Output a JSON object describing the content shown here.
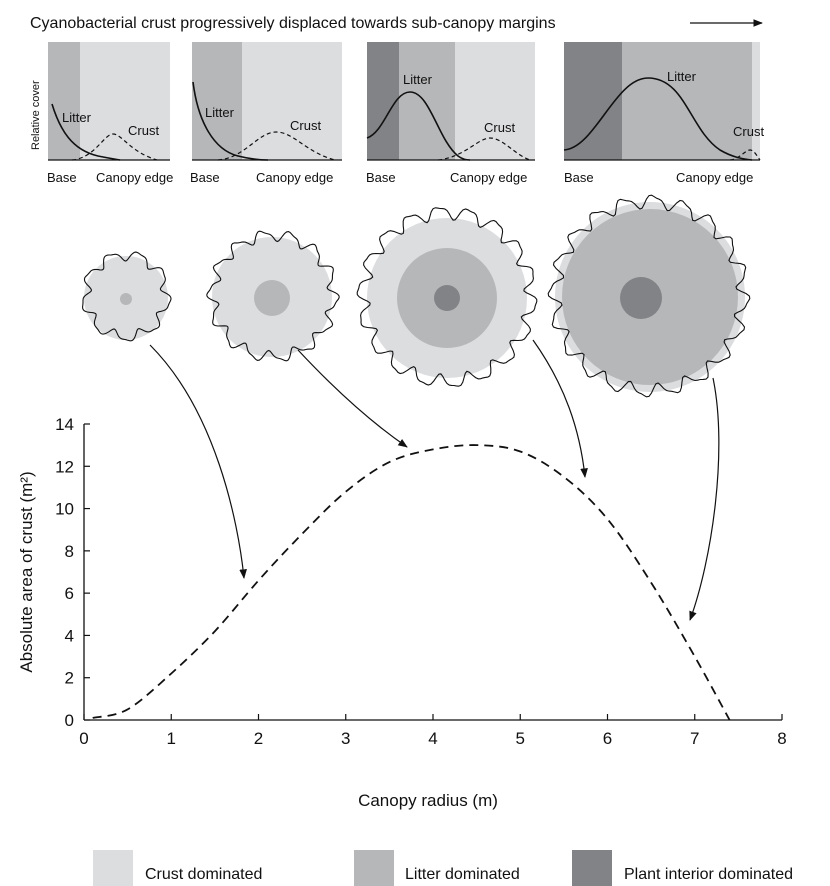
{
  "title": "Cyanobacterial crust progressively displaced towards sub-canopy margins",
  "panels": {
    "ylabel": "Relative cover",
    "litter_label": "Litter",
    "crust_label": "Crust",
    "base_label": "Base",
    "edge_label": "Canopy edge"
  },
  "legend": [
    {
      "label": "Crust dominated",
      "color": "#dcdddf"
    },
    {
      "label": "Litter dominated",
      "color": "#b6b7b9"
    },
    {
      "label": "Plant interior dominated",
      "color": "#828386"
    }
  ],
  "chart_data": {
    "type": "line",
    "xlabel": "Canopy radius (m)",
    "ylabel": "Absolute area of crust (m²)",
    "xlim": [
      0,
      8
    ],
    "ylim": [
      0,
      14
    ],
    "xticks": [
      "0",
      "1",
      "2",
      "3",
      "4",
      "5",
      "6",
      "7",
      "8"
    ],
    "yticks": [
      "0",
      "2",
      "4",
      "6",
      "8",
      "10",
      "12",
      "14"
    ],
    "line_style": "dashed",
    "series": [
      {
        "x": [
          0.1,
          0.5,
          1.0,
          1.5,
          2.0,
          2.5,
          3.0,
          3.5,
          4.0,
          4.5,
          5.0,
          5.5,
          6.0,
          6.5,
          7.0,
          7.4
        ],
        "y": [
          0.1,
          0.5,
          2.2,
          4.2,
          6.6,
          8.8,
          10.8,
          12.2,
          12.8,
          13.0,
          12.7,
          11.5,
          9.5,
          6.5,
          3.0,
          0.0
        ]
      }
    ]
  }
}
